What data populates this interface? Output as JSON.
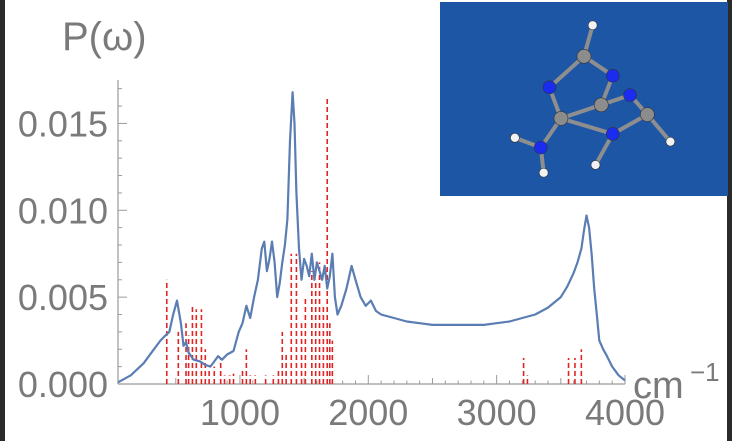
{
  "chart_data": {
    "type": "line",
    "ylabel": "P(ω)",
    "xlabel_unit": "cm",
    "xlabel_exponent": "−1",
    "xlim": [
      50,
      4000
    ],
    "ylim": [
      0,
      0.0175
    ],
    "xticks": [
      1000,
      2000,
      3000,
      4000
    ],
    "xtick_labels": [
      "1000",
      "2000",
      "3000",
      "4000"
    ],
    "yticks": [
      0.0,
      0.005,
      0.01,
      0.015
    ],
    "ytick_labels": [
      "0.000",
      "0.005",
      "0.010",
      "0.015"
    ],
    "line_color": "#5a7db3",
    "stick_color": "#e02424",
    "series": {
      "x": [
        50,
        150,
        250,
        330,
        380,
        420,
        450,
        480,
        510,
        540,
        560,
        580,
        600,
        640,
        690,
        730,
        770,
        800,
        830,
        860,
        900,
        950,
        990,
        1020,
        1050,
        1080,
        1110,
        1140,
        1170,
        1190,
        1210,
        1230,
        1250,
        1270,
        1290,
        1310,
        1330,
        1350,
        1370,
        1390,
        1410,
        1425,
        1440,
        1460,
        1480,
        1500,
        1520,
        1540,
        1560,
        1580,
        1600,
        1620,
        1640,
        1660,
        1680,
        1700,
        1720,
        1740,
        1760,
        1790,
        1830,
        1870,
        1900,
        1940,
        1980,
        2020,
        2060,
        2100,
        2200,
        2300,
        2400,
        2500,
        2600,
        2700,
        2800,
        2900,
        3000,
        3100,
        3200,
        3300,
        3400,
        3500,
        3550,
        3600,
        3630,
        3660,
        3680,
        3700,
        3720,
        3740,
        3760,
        3780,
        3800,
        3830,
        3860,
        3900,
        3950,
        4000
      ],
      "y": [
        0.0001,
        0.0005,
        0.0012,
        0.002,
        0.0025,
        0.0028,
        0.003,
        0.004,
        0.0048,
        0.0035,
        0.0022,
        0.0024,
        0.0018,
        0.0014,
        0.0013,
        0.0011,
        0.001,
        0.0013,
        0.0016,
        0.0014,
        0.0017,
        0.0019,
        0.003,
        0.0035,
        0.0045,
        0.0038,
        0.005,
        0.006,
        0.0078,
        0.0082,
        0.0065,
        0.0072,
        0.0082,
        0.007,
        0.005,
        0.0058,
        0.007,
        0.008,
        0.0095,
        0.014,
        0.0168,
        0.015,
        0.011,
        0.0078,
        0.006,
        0.0072,
        0.0068,
        0.0062,
        0.0075,
        0.006,
        0.007,
        0.0065,
        0.006,
        0.0068,
        0.0055,
        0.0062,
        0.0075,
        0.005,
        0.004,
        0.0045,
        0.0055,
        0.0068,
        0.006,
        0.005,
        0.0045,
        0.0048,
        0.0042,
        0.004,
        0.0038,
        0.0036,
        0.0035,
        0.0034,
        0.0034,
        0.0034,
        0.0034,
        0.0034,
        0.0035,
        0.0036,
        0.0038,
        0.004,
        0.0044,
        0.005,
        0.0056,
        0.0064,
        0.007,
        0.0078,
        0.0088,
        0.0097,
        0.009,
        0.0075,
        0.0055,
        0.004,
        0.0025,
        0.002,
        0.0016,
        0.001,
        0.0005,
        0.0002
      ]
    },
    "sticks": {
      "x": [
        430,
        520,
        580,
        600,
        630,
        660,
        700,
        730,
        760,
        800,
        850,
        880,
        920,
        950,
        1020,
        1050,
        1080,
        1120,
        1200,
        1260,
        1300,
        1330,
        1360,
        1400,
        1440,
        1480,
        1510,
        1560,
        1590,
        1620,
        1650,
        1680,
        1700,
        1720,
        3210,
        3240,
        3560,
        3610,
        3660
      ],
      "y": [
        0.006,
        0.003,
        0.0035,
        0.0028,
        0.0045,
        0.0043,
        0.0043,
        0.002,
        0.0008,
        0.001,
        0.0015,
        0.0005,
        0.0005,
        0.0006,
        0.0008,
        0.002,
        0.0005,
        0.0005,
        0.0005,
        0.0005,
        0.0008,
        0.003,
        0.0018,
        0.0075,
        0.0075,
        0.0035,
        0.005,
        0.0065,
        0.006,
        0.007,
        0.0045,
        0.0165,
        0.0035,
        0.0025,
        0.0015,
        0.0005,
        0.0015,
        0.0015,
        0.002
      ]
    },
    "inset": {
      "background": "#1e56a6",
      "atoms": [
        {
          "el": "H",
          "x": 0.53,
          "y": 0.12
        },
        {
          "el": "C",
          "x": 0.5,
          "y": 0.28
        },
        {
          "el": "N",
          "x": 0.6,
          "y": 0.38
        },
        {
          "el": "N",
          "x": 0.38,
          "y": 0.44
        },
        {
          "el": "C",
          "x": 0.56,
          "y": 0.53
        },
        {
          "el": "C",
          "x": 0.42,
          "y": 0.6
        },
        {
          "el": "N",
          "x": 0.66,
          "y": 0.48
        },
        {
          "el": "C",
          "x": 0.72,
          "y": 0.58
        },
        {
          "el": "N",
          "x": 0.6,
          "y": 0.68
        },
        {
          "el": "H",
          "x": 0.8,
          "y": 0.72
        },
        {
          "el": "N",
          "x": 0.35,
          "y": 0.75
        },
        {
          "el": "H",
          "x": 0.26,
          "y": 0.7
        },
        {
          "el": "H",
          "x": 0.36,
          "y": 0.88
        },
        {
          "el": "H",
          "x": 0.54,
          "y": 0.84
        }
      ],
      "bonds": [
        [
          0,
          1
        ],
        [
          1,
          2
        ],
        [
          1,
          3
        ],
        [
          2,
          4
        ],
        [
          3,
          5
        ],
        [
          4,
          5
        ],
        [
          4,
          6
        ],
        [
          6,
          7
        ],
        [
          7,
          8
        ],
        [
          8,
          5
        ],
        [
          7,
          9
        ],
        [
          5,
          10
        ],
        [
          10,
          11
        ],
        [
          10,
          12
        ],
        [
          8,
          13
        ]
      ]
    }
  }
}
